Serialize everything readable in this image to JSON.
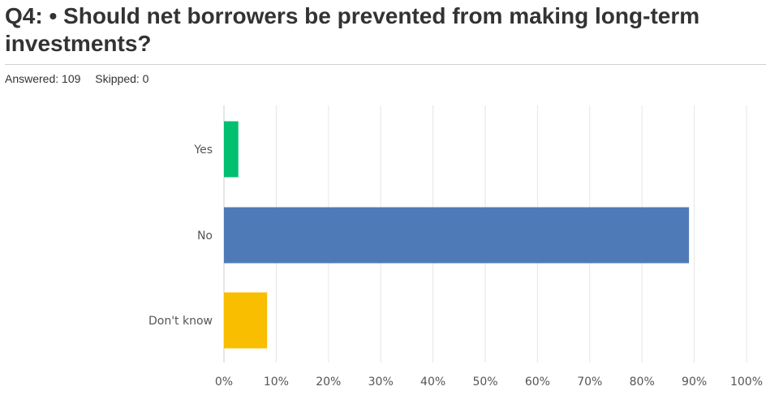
{
  "question": {
    "title": "Q4: • Should net borrowers be prevented from making long-term investments?"
  },
  "stats": {
    "answered_label": "Answered: 109",
    "skipped_label": "Skipped: 0"
  },
  "colors": {
    "yes": "#00bf6f",
    "no": "#4e7bb7",
    "dont_know": "#f9be00",
    "grid": "#e6e6e6",
    "axis": "#cccccc"
  },
  "chart_data": {
    "type": "bar",
    "orientation": "horizontal",
    "categories": [
      "Yes",
      "No",
      "Don't know"
    ],
    "values": [
      2.75,
      88.99,
      8.26
    ],
    "colors": [
      "#00bf6f",
      "#4e7bb7",
      "#f9be00"
    ],
    "xlim": [
      0,
      100
    ],
    "xticks": [
      "0%",
      "10%",
      "20%",
      "30%",
      "40%",
      "50%",
      "60%",
      "70%",
      "80%",
      "90%",
      "100%"
    ],
    "grid": true,
    "legend": "none",
    "title": "",
    "xlabel": "",
    "ylabel": ""
  }
}
